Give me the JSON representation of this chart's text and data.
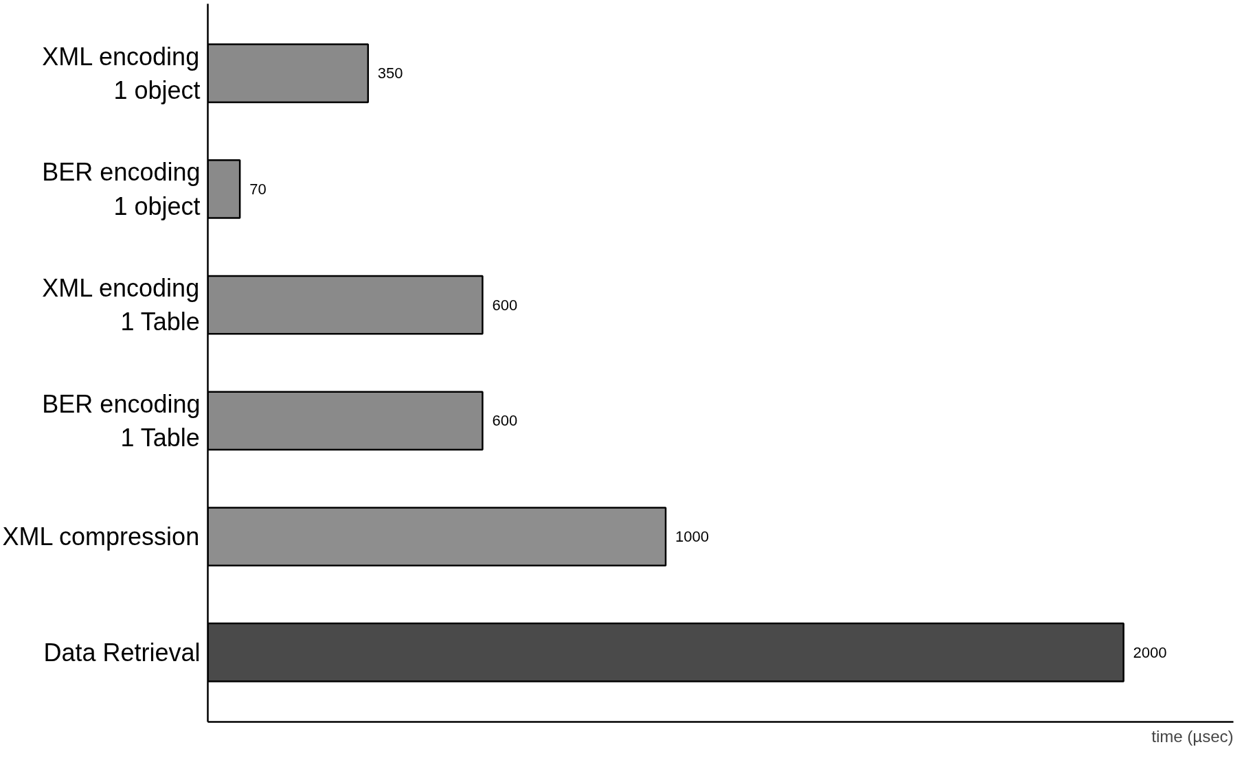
{
  "chart_data": {
    "type": "bar",
    "orientation": "horizontal",
    "xlabel": "time (µsec)",
    "categories": [
      "XML encoding\n1 object",
      "BER encoding\n1 object",
      "XML encoding\n1 Table",
      "BER encoding\n1 Table",
      "XML compression",
      "Data Retrieval"
    ],
    "values": [
      350,
      70,
      600,
      600,
      1000,
      2000
    ],
    "colors": [
      "#8a8a8a",
      "#8a8a8a",
      "#8a8a8a",
      "#8a8a8a",
      "#8e8e8e",
      "#4a4a4a"
    ],
    "data_labels": true,
    "grid": false
  }
}
